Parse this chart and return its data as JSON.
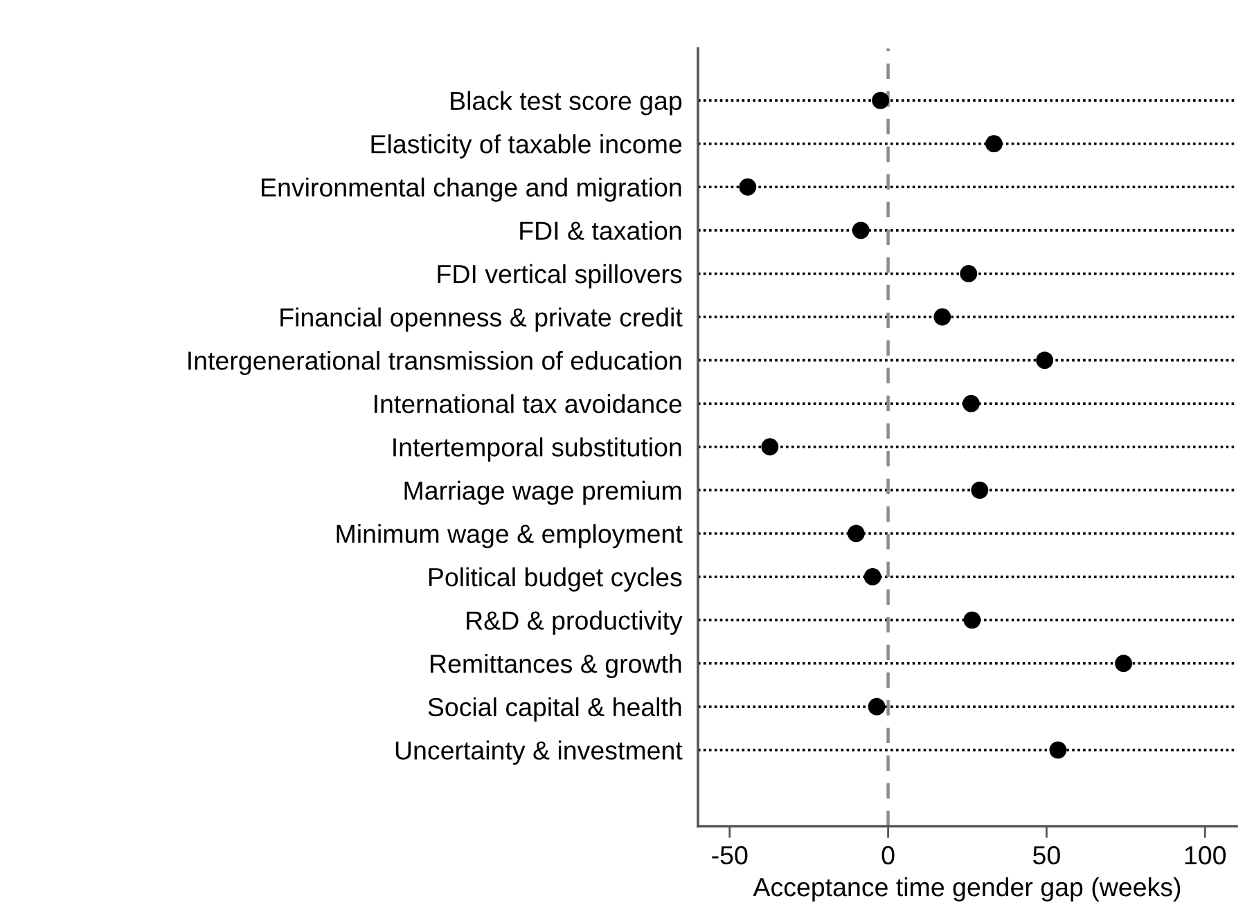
{
  "chart_data": {
    "type": "scatter",
    "xlabel": "Acceptance time gender gap (weeks)",
    "categories": [
      "Black test score gap",
      "Elasticity of taxable income",
      "Environmental change and migration",
      "FDI & taxation",
      "FDI vertical spillovers",
      "Financial openness & private credit",
      "Intergenerational transmission of education",
      "International tax avoidance",
      "Intertemporal substitution",
      "Marriage wage premium",
      "Minimum wage & employment",
      "Political budget cycles",
      "R&D & productivity",
      "Remittances & growth",
      "Social capital & health",
      "Uncertainty & investment"
    ],
    "orientation": "horizontal",
    "values": [
      -2.4,
      33.4,
      -44.3,
      -8.6,
      25.4,
      17.1,
      49.4,
      26.2,
      -37.3,
      28.9,
      -10.1,
      -4.9,
      26.5,
      74.3,
      -3.6,
      53.6
    ],
    "color": "#000000",
    "marker": "circle",
    "xlim": [
      -60,
      110
    ],
    "xticks": [
      -50,
      0,
      50,
      100
    ],
    "grid": "y",
    "ref_lines": [
      {
        "axis": "x",
        "value": 0,
        "color": "#8c8c8c",
        "line_style": "dashed"
      }
    ]
  }
}
